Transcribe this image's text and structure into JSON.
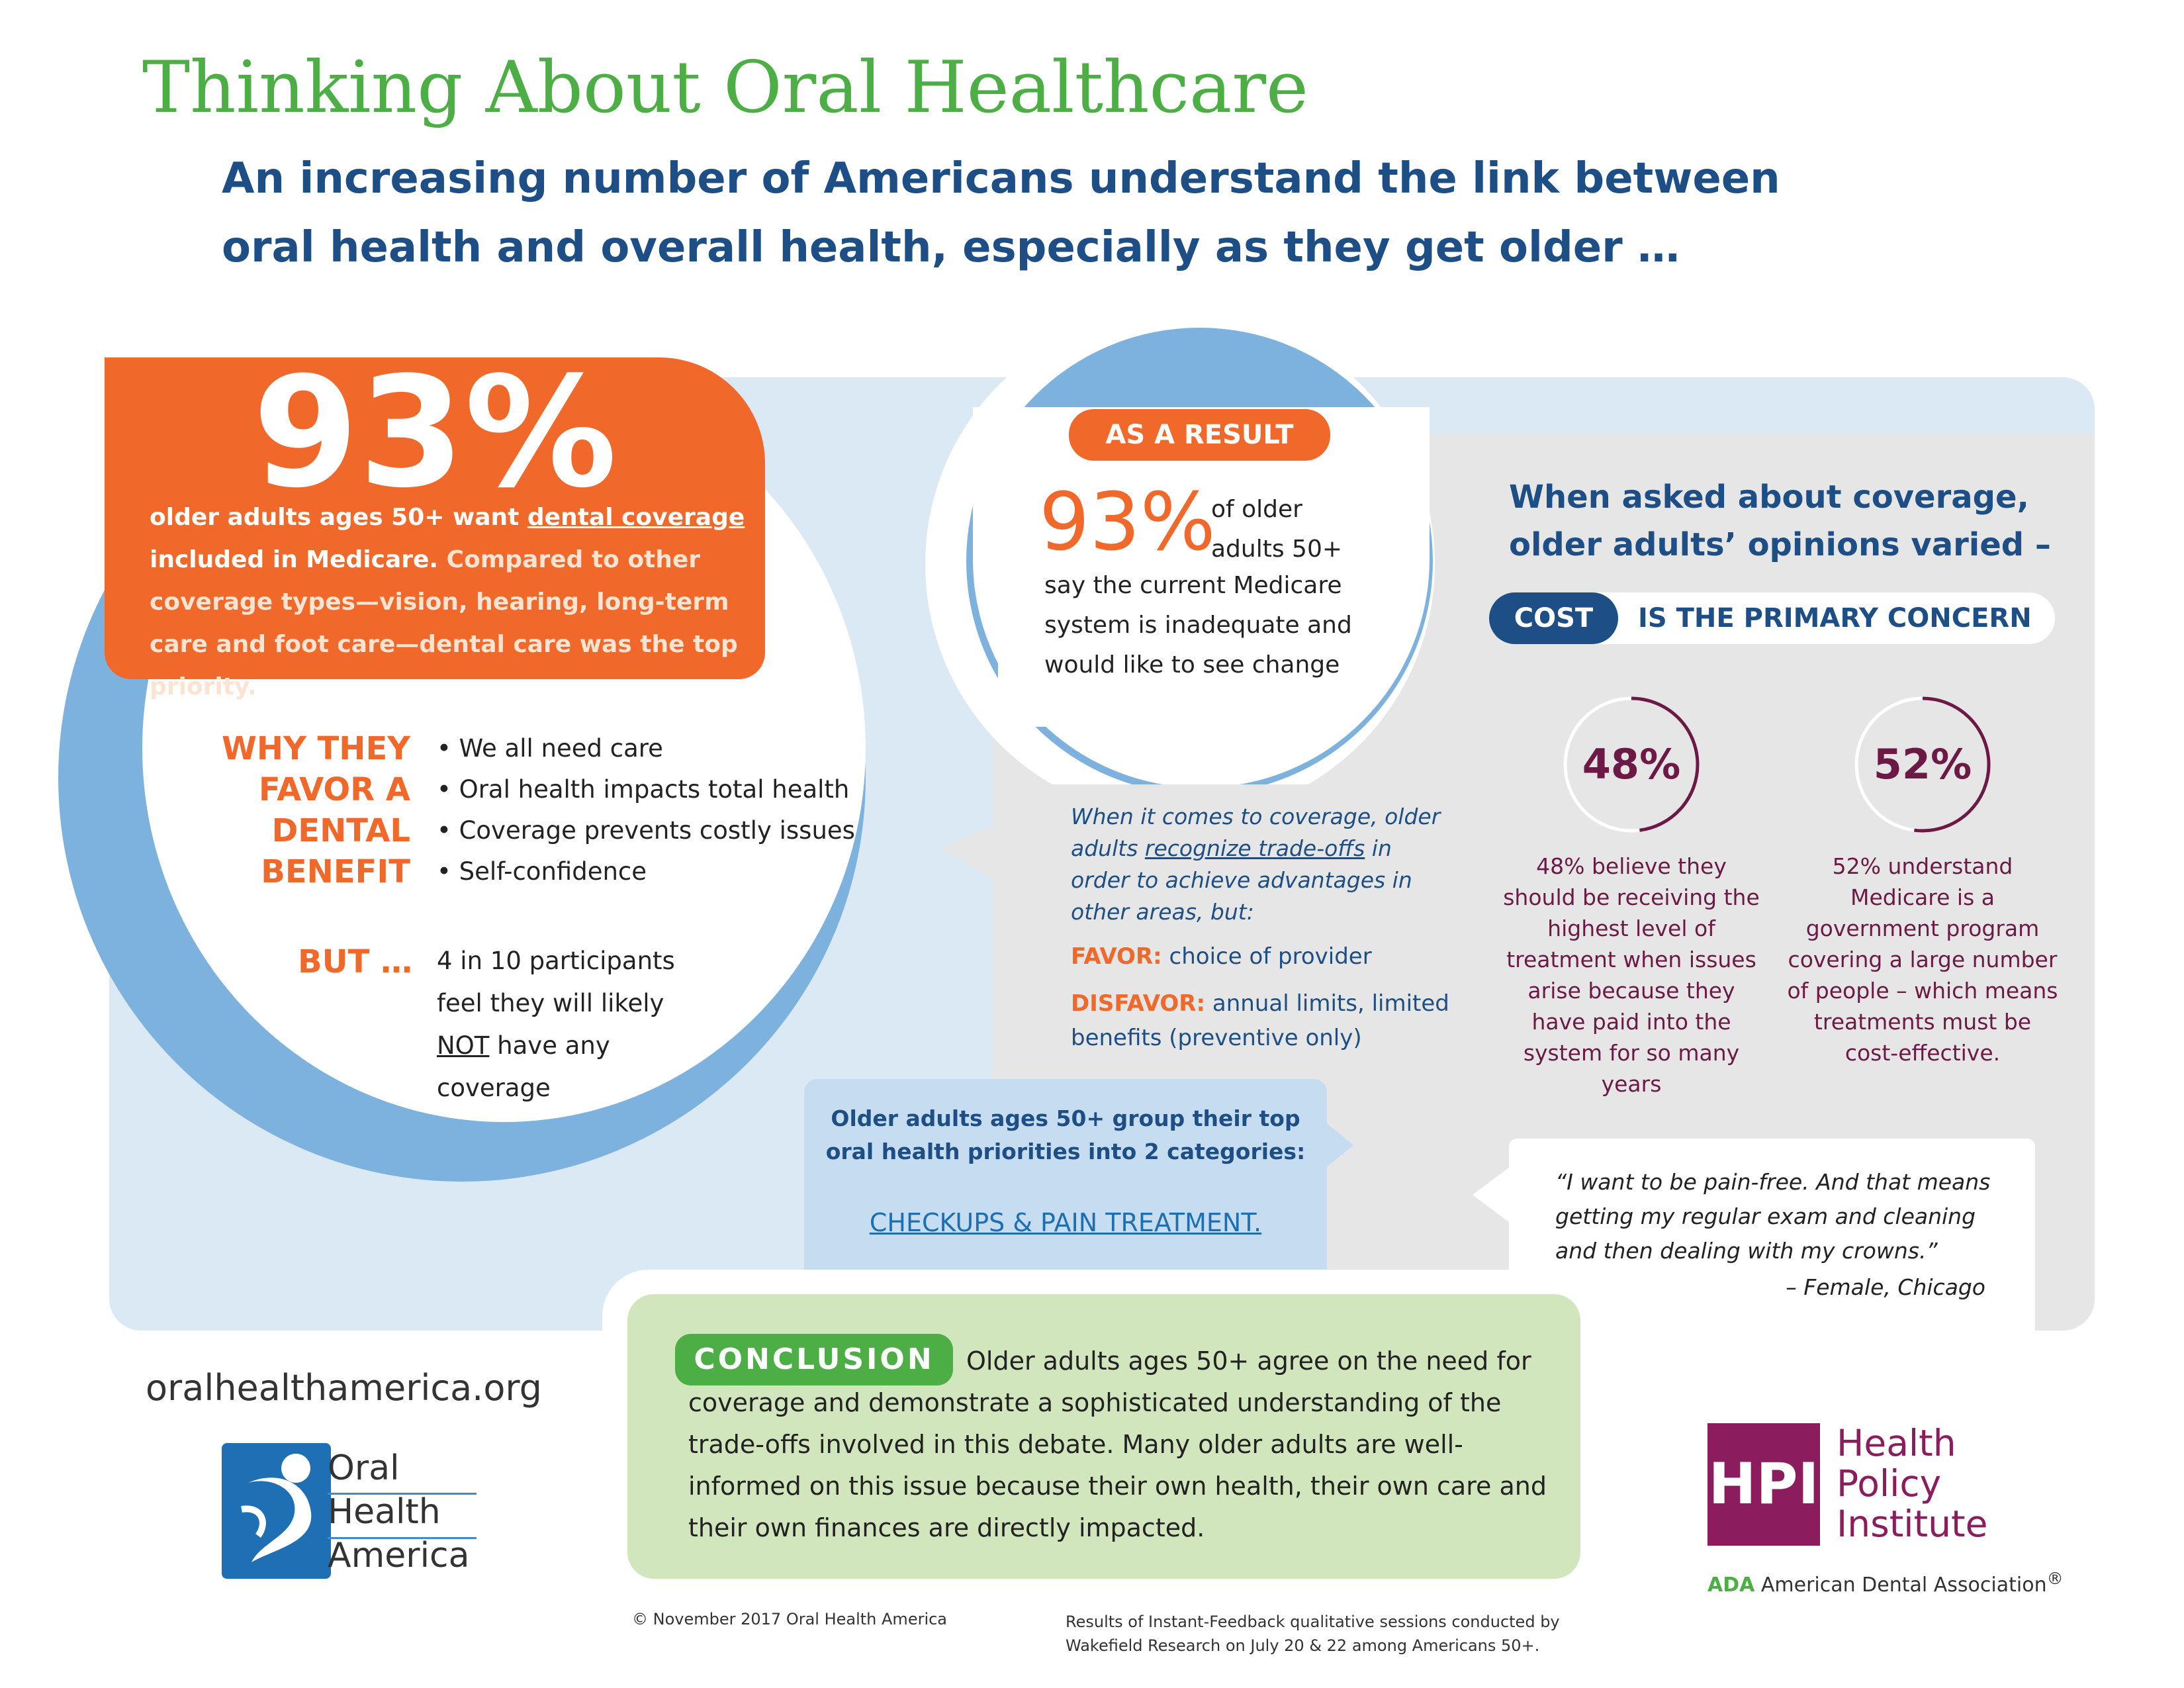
{
  "header": {
    "title": "Thinking About Oral Healthcare",
    "subtitle_line1": "An increasing number of Americans understand the link between",
    "subtitle_line2": "oral health and overall health, especially as they get older …"
  },
  "main_stat": {
    "value": "93%",
    "text_lead": "older adults ages 50+ want ",
    "text_link": "dental coverage",
    "text_line2": "included in Medicare.",
    "text_rest": " Compared to other coverage types—vision, hearing, long-term care and foot care—dental care was the top priority."
  },
  "why": {
    "heading_lines": [
      "WHY THEY",
      "FAVOR A",
      "DENTAL",
      "BENEFIT"
    ],
    "items": [
      "• We all need care",
      "• Oral health impacts total health",
      "• Coverage prevents costly issues",
      "• Self-confidence"
    ],
    "but_label": "BUT …",
    "but_text_a": "4 in 10 participants feel they will likely ",
    "but_text_not": "NOT",
    "but_text_b": " have any coverage"
  },
  "result": {
    "label": "AS A RESULT",
    "value": "93%",
    "text_a": "of older adults 50+",
    "text_b": "say the current Medicare system is inadequate and would like to see change"
  },
  "coverage": {
    "heading_line1": "When asked about coverage,",
    "heading_line2": "older adults’ opinions varied –",
    "cost_label": "COST",
    "cost_concern": "IS THE PRIMARY CONCERN",
    "stats": [
      {
        "value": "48%",
        "percent": 48,
        "text": "48% believe they should be receiving the highest level of treatment when issues arise because they have paid into the system for so many years"
      },
      {
        "value": "52%",
        "percent": 52,
        "text": "52% understand Medicare is a government program covering a large number of people – which means treatments must be cost-effective."
      }
    ]
  },
  "tradeoffs": {
    "intro_a": "When it comes to coverage, older adults ",
    "intro_link": "recognize trade-offs",
    "intro_b": " in order to achieve advantages in other areas, but:",
    "favor_label": "FAVOR:",
    "favor_text": " choice of provider",
    "disfavor_label": "DISFAVOR:",
    "disfavor_text": " annual limits, limited benefits (preventive only)"
  },
  "checkups": {
    "text": "Older adults ages 50+ group their top oral health priorities into 2 categories:",
    "link": "CHECKUPS & PAIN TREATMENT",
    "link_suffix": "."
  },
  "quote": {
    "text": "“I want to be pain-free. And that means getting my regular exam and cleaning and then dealing with my crowns.”",
    "author": "– Female, Chicago"
  },
  "conclusion": {
    "label": "CONCLUSION",
    "text": "Older adults ages 50+ agree on the need for coverage and demonstrate a sophisticated understanding of the trade-offs involved in this debate. Many older adults are well-informed on this issue because their own health, their own care and their own finances are directly impacted."
  },
  "footer": {
    "website": "oralhealthamerica.org",
    "oha_name": [
      "Oral",
      "Health",
      "America"
    ],
    "hpi_mark": "HPI",
    "hpi_name": [
      "Health",
      "Policy",
      "Institute"
    ],
    "ada_short": "ADA",
    "ada_full": " American Dental Association",
    "ada_reg": "®",
    "copyright": "© November 2017 Oral Health America",
    "source_note": "Results of Instant-Feedback qualitative sessions conducted by Wakefield Research on July 20 & 22 among Americans 50+."
  },
  "colors": {
    "green": "#4cae45",
    "navy": "#1d4f86",
    "orange": "#f0682a",
    "plum": "#6c1a45",
    "light_blue": "#dbe9f5",
    "mid_blue": "#7eb2de",
    "hpi_purple": "#8b1c5d"
  },
  "icons": {
    "oha_logo": "oral-health-america-figure-icon"
  }
}
